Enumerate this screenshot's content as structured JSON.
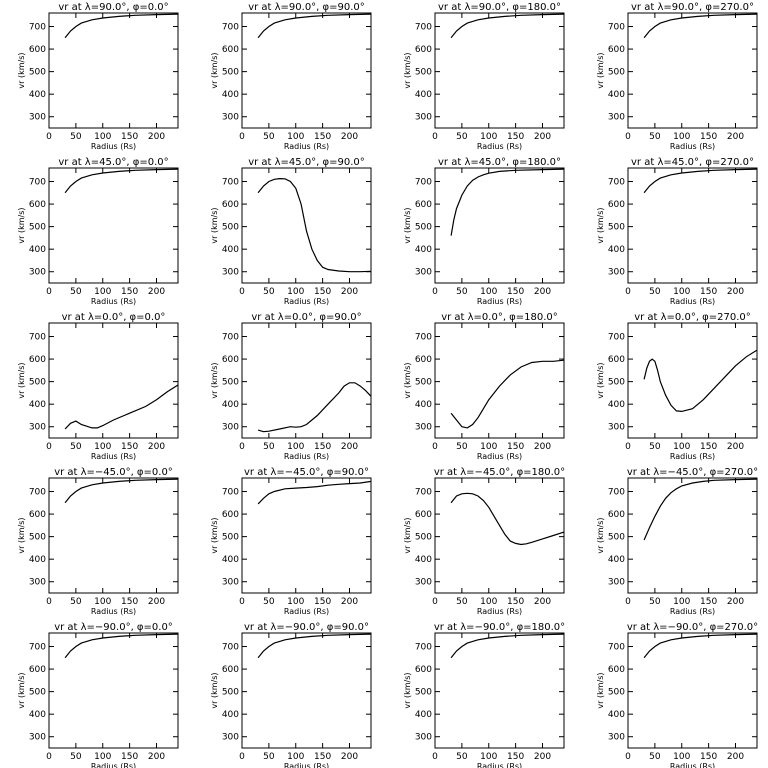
{
  "chart_data": {
    "type": "line",
    "layout": "5x4 grid of line plots",
    "xlabel": "Radius (Rs)",
    "ylabel": "vr (km/s)",
    "xlim": [
      0,
      240
    ],
    "ylim": [
      250,
      760
    ],
    "xticks": [
      0,
      50,
      100,
      150,
      200
    ],
    "yticks": [
      300,
      400,
      500,
      600,
      700
    ],
    "grid": false,
    "panels": [
      {
        "title": "vr at λ=90.0°, φ=0.0°",
        "x": [
          30,
          40,
          50,
          60,
          80,
          100,
          130,
          160,
          200,
          240
        ],
        "y": [
          650,
          680,
          700,
          715,
          730,
          738,
          745,
          750,
          753,
          755
        ]
      },
      {
        "title": "vr at λ=90.0°, φ=90.0°",
        "x": [
          30,
          40,
          50,
          60,
          80,
          100,
          130,
          160,
          200,
          240
        ],
        "y": [
          650,
          680,
          700,
          715,
          730,
          738,
          745,
          750,
          753,
          755
        ]
      },
      {
        "title": "vr at λ=90.0°, φ=180.0°",
        "x": [
          30,
          40,
          50,
          60,
          80,
          100,
          130,
          160,
          200,
          240
        ],
        "y": [
          650,
          680,
          700,
          715,
          730,
          738,
          745,
          750,
          753,
          755
        ]
      },
      {
        "title": "vr at λ=90.0°, φ=270.0°",
        "x": [
          30,
          40,
          50,
          60,
          80,
          100,
          130,
          160,
          200,
          240
        ],
        "y": [
          650,
          680,
          700,
          715,
          730,
          738,
          745,
          750,
          753,
          755
        ]
      },
      {
        "title": "vr at λ=45.0°, φ=0.0°",
        "x": [
          30,
          40,
          50,
          60,
          80,
          100,
          130,
          160,
          200,
          240
        ],
        "y": [
          650,
          680,
          700,
          715,
          730,
          738,
          745,
          750,
          753,
          755
        ]
      },
      {
        "title": "vr at λ=45.0°, φ=90.0°",
        "x": [
          30,
          40,
          50,
          60,
          70,
          80,
          90,
          100,
          110,
          120,
          130,
          140,
          150,
          160,
          180,
          200,
          220,
          240
        ],
        "y": [
          650,
          680,
          700,
          710,
          713,
          712,
          700,
          670,
          600,
          480,
          400,
          350,
          320,
          310,
          303,
          300,
          300,
          302
        ]
      },
      {
        "title": "vr at λ=45.0°, φ=180.0°",
        "x": [
          30,
          35,
          40,
          50,
          60,
          70,
          80,
          90,
          100,
          120,
          150,
          200,
          240
        ],
        "y": [
          460,
          530,
          580,
          640,
          680,
          705,
          720,
          730,
          737,
          745,
          750,
          753,
          755
        ]
      },
      {
        "title": "vr at λ=45.0°, φ=270.0°",
        "x": [
          30,
          40,
          50,
          60,
          80,
          100,
          130,
          160,
          200,
          240
        ],
        "y": [
          650,
          680,
          700,
          715,
          730,
          738,
          745,
          750,
          753,
          755
        ]
      },
      {
        "title": "vr at λ=0.0°, φ=0.0°",
        "x": [
          30,
          40,
          50,
          60,
          80,
          90,
          100,
          120,
          150,
          180,
          200,
          220,
          240
        ],
        "y": [
          290,
          315,
          325,
          310,
          295,
          295,
          305,
          330,
          360,
          390,
          420,
          455,
          485
        ]
      },
      {
        "title": "vr at λ=0.0°, φ=90.0°",
        "x": [
          30,
          40,
          50,
          70,
          90,
          100,
          110,
          120,
          140,
          160,
          180,
          190,
          200,
          210,
          220,
          230,
          240
        ],
        "y": [
          285,
          278,
          280,
          290,
          300,
          298,
          300,
          310,
          350,
          400,
          450,
          480,
          495,
          495,
          480,
          460,
          435
        ]
      },
      {
        "title": "vr at λ=0.0°, φ=180.0°",
        "x": [
          30,
          40,
          50,
          60,
          70,
          80,
          90,
          100,
          120,
          140,
          160,
          180,
          200,
          220,
          240
        ],
        "y": [
          360,
          330,
          300,
          295,
          310,
          340,
          380,
          420,
          480,
          530,
          565,
          585,
          590,
          590,
          595
        ]
      },
      {
        "title": "vr at λ=0.0°, φ=270.0°",
        "x": [
          30,
          35,
          40,
          45,
          50,
          55,
          60,
          70,
          80,
          90,
          100,
          120,
          140,
          160,
          180,
          200,
          220,
          240
        ],
        "y": [
          510,
          560,
          590,
          600,
          590,
          550,
          500,
          440,
          395,
          370,
          368,
          380,
          420,
          470,
          520,
          570,
          610,
          640
        ]
      },
      {
        "title": "vr at λ=−45.0°, φ=0.0°",
        "x": [
          30,
          40,
          50,
          60,
          80,
          100,
          130,
          160,
          200,
          240
        ],
        "y": [
          650,
          680,
          700,
          715,
          730,
          738,
          745,
          750,
          753,
          755
        ]
      },
      {
        "title": "vr at λ=−45.0°, φ=90.0°",
        "x": [
          30,
          40,
          50,
          60,
          80,
          100,
          120,
          140,
          160,
          180,
          200,
          220,
          240
        ],
        "y": [
          645,
          670,
          690,
          700,
          712,
          715,
          718,
          722,
          728,
          732,
          735,
          738,
          745
        ]
      },
      {
        "title": "vr at λ=−45.0°, φ=180.0°",
        "x": [
          30,
          40,
          50,
          60,
          70,
          80,
          90,
          100,
          110,
          120,
          130,
          140,
          150,
          160,
          170,
          180,
          200,
          220,
          240
        ],
        "y": [
          650,
          680,
          690,
          692,
          690,
          680,
          660,
          630,
          590,
          550,
          510,
          480,
          470,
          465,
          468,
          475,
          490,
          505,
          520
        ]
      },
      {
        "title": "vr at λ=−45.0°, φ=270.0°",
        "x": [
          30,
          40,
          50,
          60,
          70,
          80,
          90,
          100,
          120,
          140,
          160,
          200,
          240
        ],
        "y": [
          485,
          540,
          590,
          635,
          670,
          695,
          712,
          725,
          738,
          745,
          750,
          753,
          755
        ]
      },
      {
        "title": "vr at λ=−90.0°, φ=0.0°",
        "x": [
          30,
          40,
          50,
          60,
          80,
          100,
          130,
          160,
          200,
          240
        ],
        "y": [
          650,
          680,
          700,
          715,
          730,
          738,
          745,
          750,
          753,
          755
        ]
      },
      {
        "title": "vr at λ=−90.0°, φ=90.0°",
        "x": [
          30,
          40,
          50,
          60,
          80,
          100,
          130,
          160,
          200,
          240
        ],
        "y": [
          650,
          680,
          700,
          715,
          730,
          738,
          745,
          750,
          753,
          755
        ]
      },
      {
        "title": "vr at λ=−90.0°, φ=180.0°",
        "x": [
          30,
          40,
          50,
          60,
          80,
          100,
          130,
          160,
          200,
          240
        ],
        "y": [
          650,
          680,
          700,
          715,
          730,
          738,
          745,
          750,
          753,
          755
        ]
      },
      {
        "title": "vr at λ=−90.0°, φ=270.0°",
        "x": [
          30,
          40,
          50,
          60,
          80,
          100,
          130,
          160,
          200,
          240
        ],
        "y": [
          650,
          680,
          700,
          715,
          730,
          738,
          745,
          750,
          753,
          755
        ]
      }
    ]
  }
}
